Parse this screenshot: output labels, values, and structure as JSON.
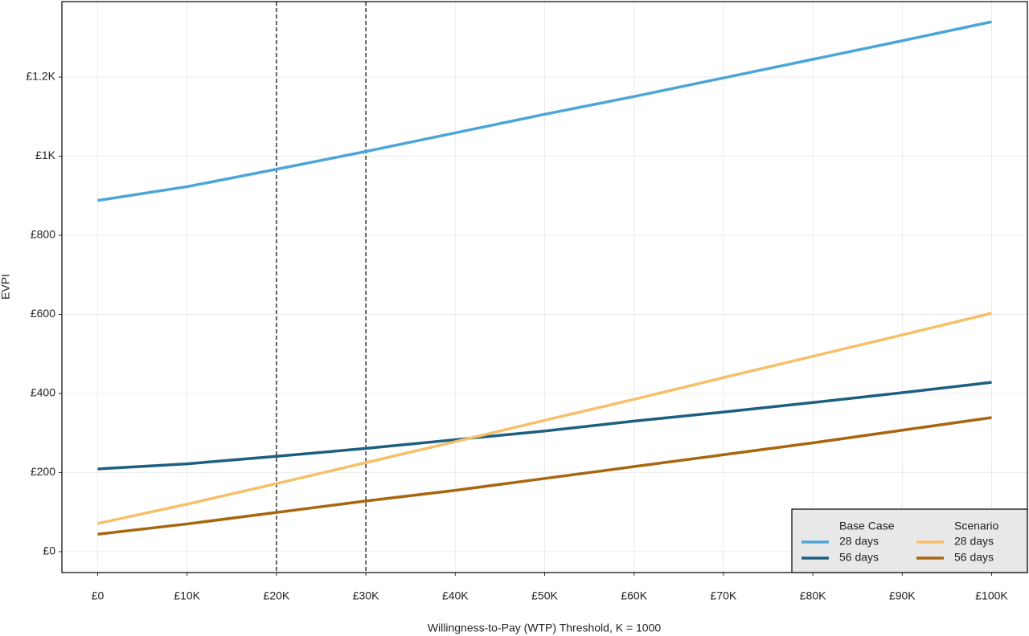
{
  "chart_data": {
    "type": "line",
    "x_label": "Willingness-to-Pay (WTP) Threshold, K = 1000",
    "y_label": "EVPI",
    "x": [
      0,
      10000,
      20000,
      30000,
      40000,
      50000,
      60000,
      70000,
      80000,
      90000,
      100000
    ],
    "series": [
      {
        "name": "28 days",
        "color": "#4ba6d8",
        "values": [
          888,
          923,
          967,
          1012,
          1059,
          1106,
          1151,
          1198,
          1245,
          1292,
          1340
        ]
      },
      {
        "name": "56 days",
        "color": "#1d5f80",
        "values": [
          209,
          222,
          241,
          261,
          283,
          305,
          330,
          353,
          377,
          402,
          428
        ]
      },
      {
        "name": "28 days",
        "color": "#f7bf6a",
        "values": [
          71,
          120,
          172,
          225,
          278,
          332,
          385,
          440,
          494,
          548,
          603
        ]
      },
      {
        "name": "56 days",
        "color": "#a8660f",
        "values": [
          44,
          70,
          99,
          128,
          155,
          185,
          215,
          245,
          275,
          307,
          339
        ]
      }
    ],
    "legend_groups": [
      "Base Case",
      "Scenario"
    ],
    "legend_position": "bottom-right",
    "vlines": [
      20000,
      30000
    ],
    "xlim": [
      -4000,
      104000
    ],
    "ylim": [
      -53,
      1391
    ],
    "xticks": [
      {
        "value": 0,
        "label": "£0"
      },
      {
        "value": 10000,
        "label": "£10K"
      },
      {
        "value": 20000,
        "label": "£20K"
      },
      {
        "value": 30000,
        "label": "£30K"
      },
      {
        "value": 40000,
        "label": "£40K"
      },
      {
        "value": 50000,
        "label": "£50K"
      },
      {
        "value": 60000,
        "label": "£60K"
      },
      {
        "value": 70000,
        "label": "£70K"
      },
      {
        "value": 80000,
        "label": "£80K"
      },
      {
        "value": 90000,
        "label": "£90K"
      },
      {
        "value": 100000,
        "label": "£100K"
      }
    ],
    "yticks": [
      {
        "value": 0,
        "label": "£0"
      },
      {
        "value": 200,
        "label": "£200"
      },
      {
        "value": 400,
        "label": "£400"
      },
      {
        "value": 600,
        "label": "£600"
      },
      {
        "value": 800,
        "label": "£800"
      },
      {
        "value": 1000,
        "label": "£1K"
      },
      {
        "value": 1200,
        "label": "£1.2K"
      }
    ],
    "grid": true
  }
}
